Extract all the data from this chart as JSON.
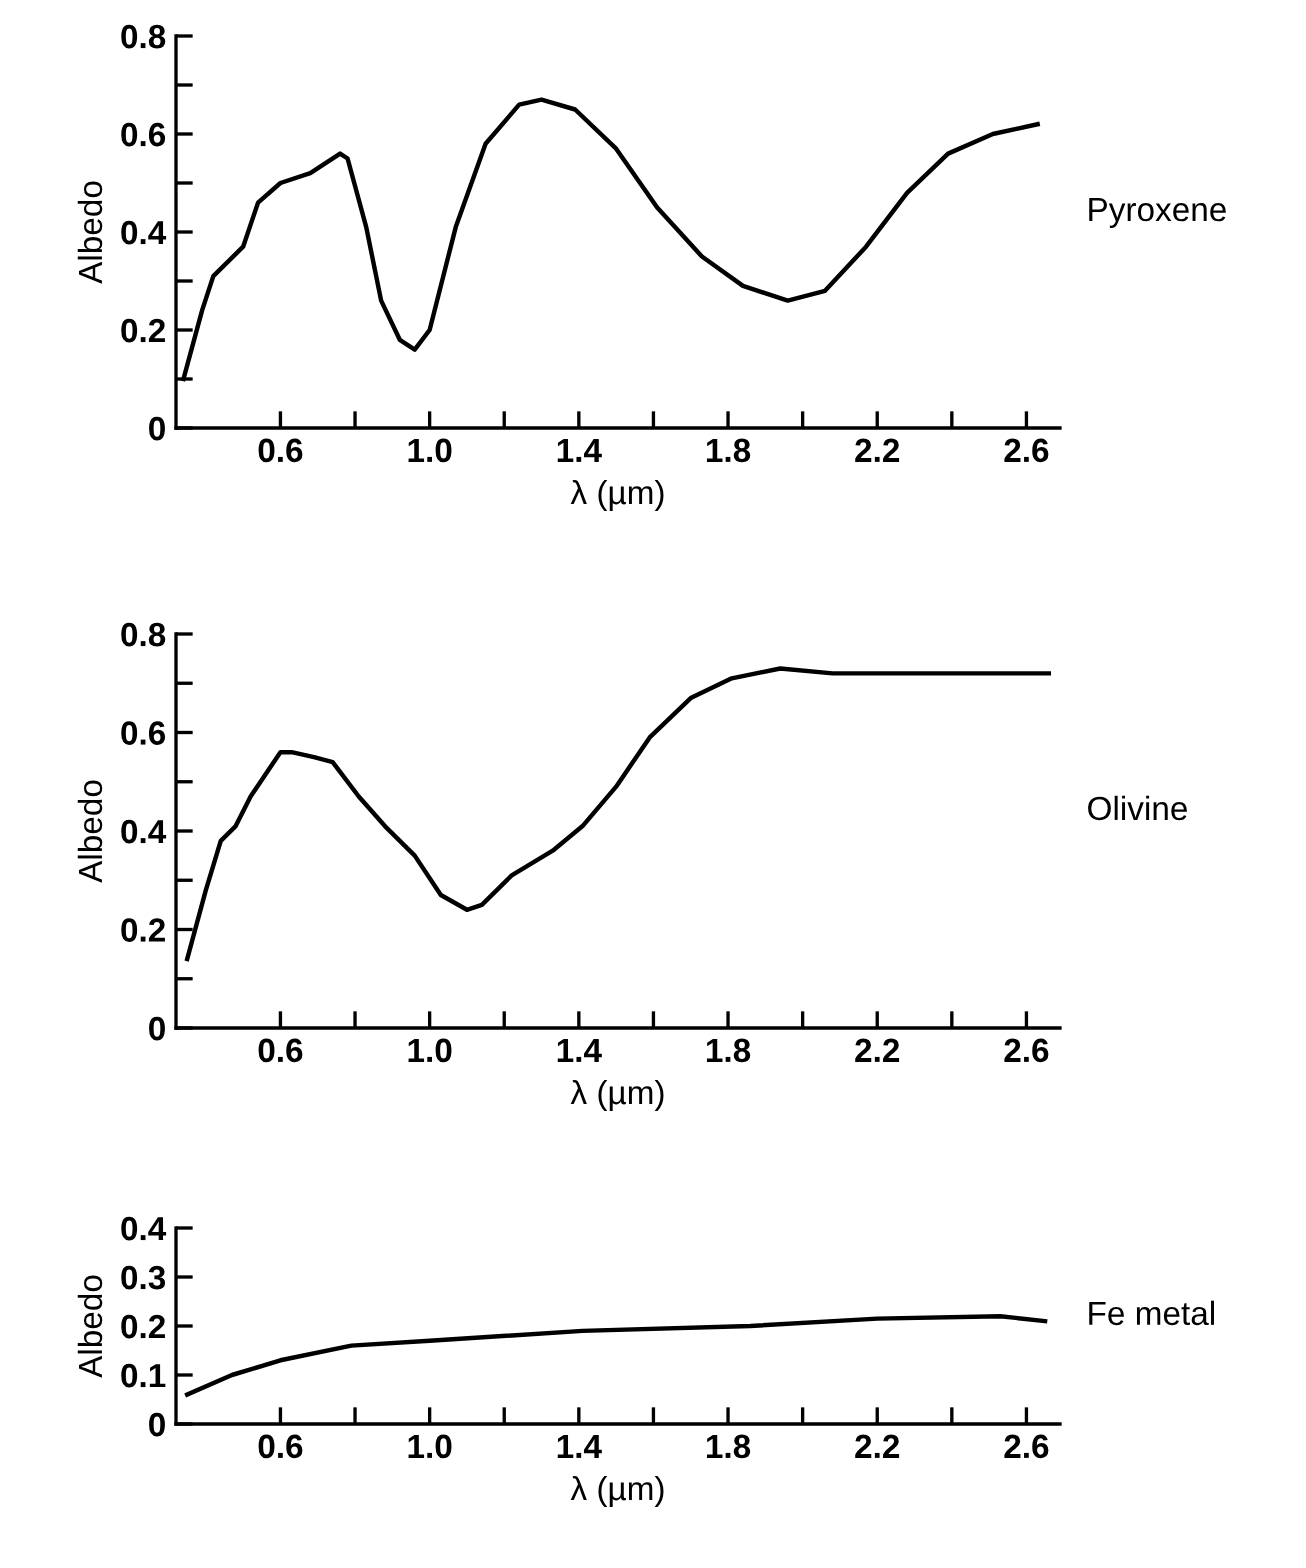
{
  "chart_data": [
    {
      "type": "line",
      "ylabel": "Albedo",
      "xlabel": "λ (µm)",
      "xlim": [
        0.32,
        2.69
      ],
      "ylim": [
        0,
        0.8
      ],
      "xticks": [
        0.6,
        {
          "value": 0.8,
          "label": null
        },
        {
          "value": 1.0,
          "label": "1.0"
        },
        {
          "value": 1.2,
          "label": null
        },
        1.4,
        {
          "value": 1.6,
          "label": null
        },
        1.8,
        {
          "value": 2.0,
          "label": null
        },
        2.2,
        {
          "value": 2.4,
          "label": null
        },
        2.6
      ],
      "yticks": [
        0,
        {
          "value": 0.1,
          "label": null
        },
        0.2,
        {
          "value": 0.3,
          "label": null
        },
        0.4,
        {
          "value": 0.5,
          "label": null
        },
        0.6,
        {
          "value": 0.7,
          "label": null
        },
        0.8
      ],
      "series": [
        {
          "name": "Pyroxene",
          "color": "#000000",
          "x": [
            0.34,
            0.39,
            0.42,
            0.5,
            0.54,
            0.6,
            0.68,
            0.76,
            0.78,
            0.83,
            0.87,
            0.92,
            0.96,
            1.0,
            1.07,
            1.15,
            1.24,
            1.3,
            1.39,
            1.5,
            1.61,
            1.73,
            1.84,
            1.96,
            2.06,
            2.17,
            2.28,
            2.39,
            2.51,
            2.63
          ],
          "values": [
            0.1,
            0.24,
            0.31,
            0.37,
            0.46,
            0.5,
            0.52,
            0.56,
            0.55,
            0.41,
            0.26,
            0.18,
            0.16,
            0.2,
            0.41,
            0.58,
            0.66,
            0.67,
            0.65,
            0.57,
            0.45,
            0.35,
            0.29,
            0.26,
            0.28,
            0.37,
            0.48,
            0.56,
            0.6,
            0.62
          ]
        }
      ]
    },
    {
      "type": "line",
      "ylabel": "Albedo",
      "xlabel": "λ (µm)",
      "xlim": [
        0.32,
        2.69
      ],
      "ylim": [
        0,
        0.8
      ],
      "xticks": [
        0.6,
        {
          "value": 0.8,
          "label": null
        },
        {
          "value": 1.0,
          "label": "1.0"
        },
        {
          "value": 1.2,
          "label": null
        },
        1.4,
        {
          "value": 1.6,
          "label": null
        },
        1.8,
        {
          "value": 2.0,
          "label": null
        },
        2.2,
        {
          "value": 2.4,
          "label": null
        },
        2.6
      ],
      "yticks": [
        0,
        {
          "value": 0.1,
          "label": null
        },
        0.2,
        {
          "value": 0.3,
          "label": null
        },
        0.4,
        {
          "value": 0.5,
          "label": null
        },
        0.6,
        {
          "value": 0.7,
          "label": null
        },
        0.8
      ],
      "series": [
        {
          "name": "Olivine",
          "color": "#000000",
          "x": [
            0.35,
            0.4,
            0.44,
            0.48,
            0.52,
            0.6,
            0.63,
            0.69,
            0.74,
            0.81,
            0.88,
            0.96,
            1.03,
            1.1,
            1.14,
            1.22,
            1.33,
            1.41,
            1.5,
            1.59,
            1.7,
            1.81,
            1.94,
            2.08,
            2.3,
            2.66
          ],
          "values": [
            0.14,
            0.28,
            0.38,
            0.41,
            0.47,
            0.56,
            0.56,
            0.55,
            0.54,
            0.47,
            0.41,
            0.35,
            0.27,
            0.24,
            0.25,
            0.31,
            0.36,
            0.41,
            0.49,
            0.59,
            0.67,
            0.71,
            0.73,
            0.72,
            0.72,
            0.72
          ]
        }
      ]
    },
    {
      "type": "line",
      "ylabel": "Albedo",
      "xlabel": "λ (µm)",
      "xlim": [
        0.32,
        2.69
      ],
      "ylim": [
        0,
        0.4
      ],
      "xticks": [
        0.6,
        {
          "value": 0.8,
          "label": null
        },
        {
          "value": 1.0,
          "label": "1.0"
        },
        {
          "value": 1.2,
          "label": null
        },
        1.4,
        {
          "value": 1.6,
          "label": null
        },
        1.8,
        {
          "value": 2.0,
          "label": null
        },
        2.2,
        {
          "value": 2.4,
          "label": null
        },
        2.6
      ],
      "yticks": [
        0,
        0.1,
        0.2,
        0.3,
        0.4
      ],
      "series": [
        {
          "name": "Fe metal",
          "color": "#000000",
          "x": [
            0.35,
            0.47,
            0.6,
            0.79,
            1.0,
            1.41,
            1.86,
            2.2,
            2.53,
            2.65
          ],
          "values": [
            0.06,
            0.1,
            0.13,
            0.16,
            0.17,
            0.19,
            0.2,
            0.215,
            0.22,
            0.21
          ]
        }
      ]
    }
  ]
}
